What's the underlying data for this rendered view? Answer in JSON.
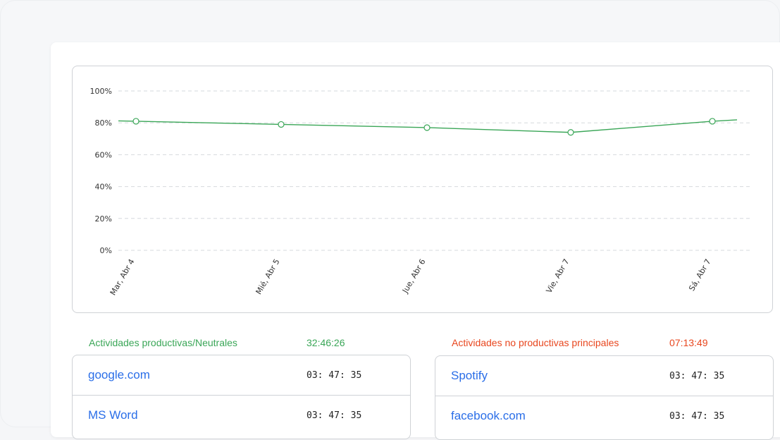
{
  "chart_data": {
    "type": "line",
    "categories": [
      "Mar, Abr 4",
      "Mié, Abr 5",
      "Jue, Abr 6",
      "Vie, Abr 7",
      "Sá, Abr 7"
    ],
    "values": [
      81,
      79,
      77,
      74,
      81
    ],
    "y_ticks": [
      "100%",
      "80%",
      "60%",
      "40%",
      "20%",
      "0%"
    ],
    "ylim": [
      0,
      100
    ],
    "grid": "horizontal dashed",
    "line_color": "#3aa657"
  },
  "productive": {
    "title": "Actividades productivas/Neutrales",
    "total": "32:46:26",
    "items": [
      {
        "name": "google.com",
        "time": "03: 47: 35"
      },
      {
        "name": "MS Word",
        "time": "03: 47: 35"
      }
    ]
  },
  "unproductive": {
    "title": "Actividades no productivas principales",
    "total": "07:13:49",
    "items": [
      {
        "name": "Spotify",
        "time": "03: 47: 35"
      },
      {
        "name": "facebook.com",
        "time": "03: 47: 35"
      }
    ]
  }
}
